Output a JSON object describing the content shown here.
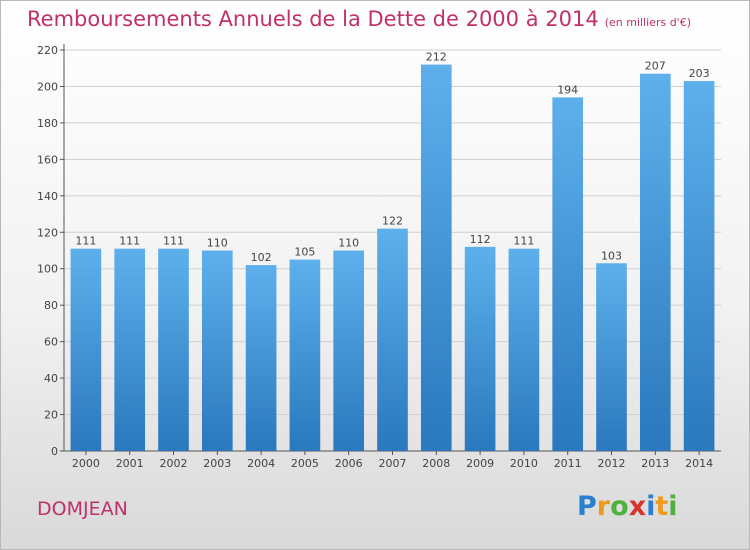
{
  "title": {
    "main": "Remboursements Annuels de la Dette de 2000 à 2014",
    "unit": "(en milliers d'€)"
  },
  "commune": "DOMJEAN",
  "logo": {
    "letters": [
      "P",
      "r",
      "o",
      "x",
      "i",
      "t",
      "i"
    ],
    "colors": [
      "#2a7fd0",
      "#f09a1c",
      "#4fb03a",
      "#d9342b",
      "#2a7fd0",
      "#f09a1c",
      "#4fb03a"
    ]
  },
  "colors": {
    "title": "#c0306a",
    "bar_top": "#5eb0ec",
    "bar_bottom": "#2a78bd",
    "grid": "#d0d0d0",
    "axis": "#555555",
    "label": "#444444"
  },
  "chart_data": {
    "type": "bar",
    "title": "Remboursements Annuels de la Dette de 2000 à 2014",
    "xlabel": "",
    "ylabel": "",
    "categories": [
      "2000",
      "2001",
      "2002",
      "2003",
      "2004",
      "2005",
      "2006",
      "2007",
      "2008",
      "2009",
      "2010",
      "2011",
      "2012",
      "2013",
      "2014"
    ],
    "values": [
      111,
      111,
      111,
      110,
      102,
      105,
      110,
      122,
      212,
      112,
      111,
      194,
      103,
      207,
      203
    ],
    "ylim": [
      0,
      220
    ],
    "yticks": [
      0,
      20,
      40,
      60,
      80,
      100,
      120,
      140,
      160,
      180,
      200,
      220
    ],
    "grid": true,
    "legend": "none"
  }
}
